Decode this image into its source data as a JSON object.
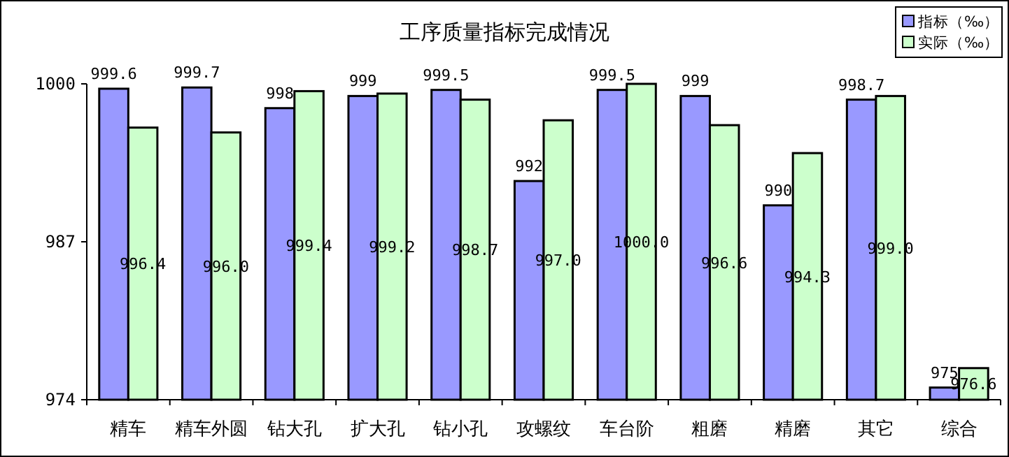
{
  "chart_data": {
    "type": "bar",
    "title": "工序质量指标完成情况",
    "categories": [
      "精车",
      "精车外圆",
      "钻大孔",
      "扩大孔",
      "钻小孔",
      "攻螺纹",
      "车台阶",
      "粗磨",
      "精磨",
      "其它",
      "综合"
    ],
    "series": [
      {
        "name": "指标（‰）",
        "color": "#9999ff",
        "values": [
          999.6,
          999.7,
          998,
          999,
          999.5,
          992,
          999.5,
          999,
          990,
          998.7,
          975
        ],
        "value_labels": [
          "999.6",
          "999.7",
          "998",
          "999",
          "999.5",
          "992",
          "999.5",
          "999",
          "990",
          "998.7",
          "975"
        ]
      },
      {
        "name": "实际（‰）",
        "color": "#ccffcc",
        "values": [
          996.4,
          996.0,
          999.4,
          999.2,
          998.7,
          997.0,
          1000.0,
          996.6,
          994.3,
          999.0,
          976.6
        ],
        "value_labels": [
          "996.4",
          "996.0",
          "999.4",
          "999.2",
          "998.7",
          "997.0",
          "1000.0",
          "996.6",
          "994.3",
          "999.0",
          "976.6"
        ]
      }
    ],
    "ylim": [
      974,
      1000
    ],
    "yticks": [
      974,
      987,
      1000
    ],
    "grid": false,
    "legend": "top right"
  }
}
